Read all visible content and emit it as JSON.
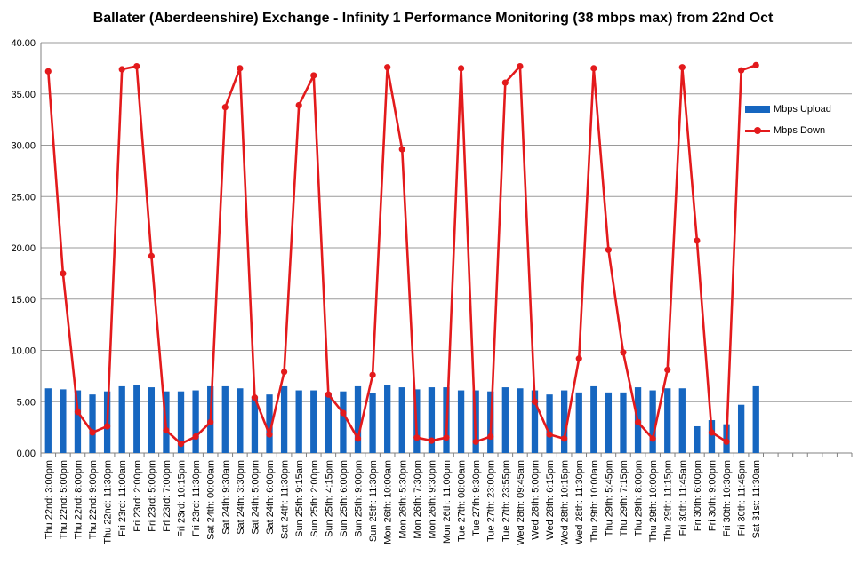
{
  "chart_data": {
    "type": "bar+line",
    "title": "Ballater (Aberdeenshire) Exchange - Infinity 1 Performance Monitoring (38 mbps max) from 22nd Oct",
    "ylim": [
      0,
      40
    ],
    "yticks": [
      "0.00",
      "5.00",
      "10.00",
      "15.00",
      "20.00",
      "25.00",
      "30.00",
      "35.00",
      "40.00"
    ],
    "grid": true,
    "legend_position": "right",
    "total_slots": 55,
    "categories": [
      "Thu 22nd: 3:00pm",
      "Thu 22nd: 5:00pm",
      "Thu 22nd: 8:00pm",
      "Thu 22nd: 9:00pm",
      "Thu 22nd: 11:30pm",
      "Fri 23rd: 11:00am",
      "Fri 23rd: 2:00pm",
      "Fri 23rd: 5:00pm",
      "Fri 23rd: 7:00pm",
      "Fri 23rd: 10:15pm",
      "Fri 23rd: 11:30pm",
      "Sat 24th: 00:00am",
      "Sat 24th: 9:30am",
      "Sat 24th: 3:30pm",
      "Sat 24th: 5:00pm",
      "Sat 24th: 6:00pm",
      "Sat 24th: 11:30pm",
      "Sun 25th: 9:15am",
      "Sun 25th: 2:00pm",
      "Sun 25th: 4:15pm",
      "Sun 25th: 6:00pm",
      "Sun 25th: 9:00pm",
      "Sun 25th: 11:30pm",
      "Mon 26th: 10:00am",
      "Mon 26th: 5:30pm",
      "Mon 26th: 7:30pm",
      "Mon 26th: 9:30pm",
      "Mon 26th: 11:00pm",
      "Tue 27th: 08:00am",
      "Tue 27th: 9:30pm",
      "Tue 27th: 23:00pm",
      "Tue 27th: 23:55pm",
      "Wed 28th: 09:45am",
      "Wed 28th: 5:00pm",
      "Wed 28th: 6:15pm",
      "Wed 28th: 10:15pm",
      "Wed 28th: 11:30pm",
      "Thu 29th: 10:00am",
      "Thu 29th: 5:45pm",
      "Thu 29th: 7:15pm",
      "Thu 29th: 8:00pm",
      "Thu 29th: 10:00pm",
      "Thu 29th: 11:15pm",
      "Fri 30th: 11:45am",
      "Fri 30th: 6:00pm",
      "Fri 30th: 9:00pm",
      "Fri 30th: 10:30pm",
      "Fri 30th: 11:45pm",
      "Sat 31st: 11:30am"
    ],
    "series": [
      {
        "name": "Mbps Upload",
        "type": "bar",
        "color": "#1666c0",
        "values": [
          6.3,
          6.2,
          6.1,
          5.7,
          6.0,
          6.5,
          6.6,
          6.4,
          6.0,
          6.0,
          6.1,
          6.5,
          6.5,
          6.3,
          5.5,
          5.7,
          6.5,
          6.1,
          6.1,
          5.7,
          6.0,
          6.5,
          5.8,
          6.6,
          6.4,
          6.2,
          6.4,
          6.4,
          6.1,
          6.1,
          6.0,
          6.4,
          6.3,
          6.1,
          5.7,
          6.1,
          5.9,
          6.5,
          5.9,
          5.9,
          6.4,
          6.1,
          6.3,
          6.3,
          2.6,
          3.2,
          2.8,
          4.7,
          6.5
        ]
      },
      {
        "name": "Mbps Down",
        "type": "line",
        "color": "#e31a1c",
        "values": [
          37.2,
          17.5,
          4.0,
          2.0,
          2.6,
          37.4,
          37.7,
          19.2,
          2.2,
          0.9,
          1.6,
          3.0,
          33.7,
          37.5,
          5.4,
          1.8,
          7.9,
          33.9,
          36.8,
          5.7,
          3.9,
          1.4,
          7.6,
          37.6,
          29.6,
          1.5,
          1.2,
          1.5,
          37.5,
          1.1,
          1.6,
          36.1,
          37.7,
          5.0,
          1.8,
          1.4,
          9.2,
          37.5,
          19.8,
          9.8,
          3.0,
          1.4,
          8.1,
          37.6,
          20.7,
          2.0,
          1.1,
          37.3,
          37.8
        ]
      }
    ]
  }
}
